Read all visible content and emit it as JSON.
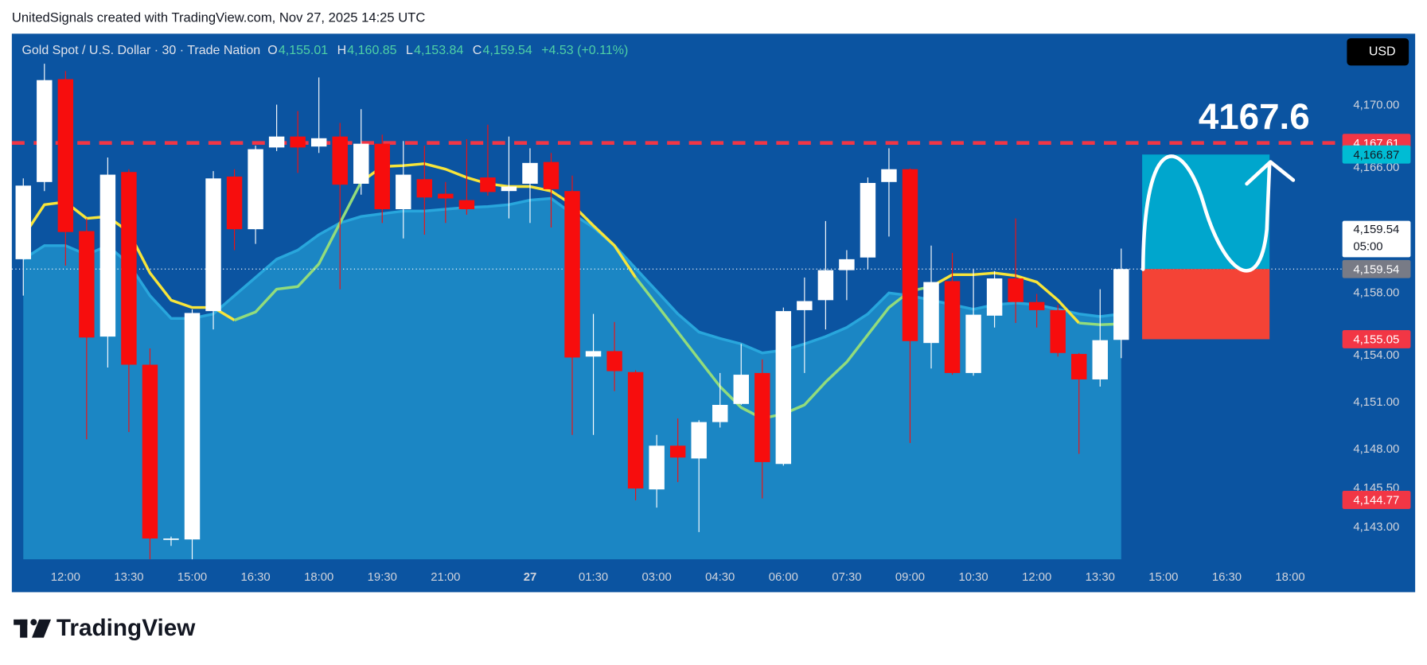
{
  "header": {
    "text": "UnitedSignals created with TradingView.com, Nov 27, 2025 14:25 UTC"
  },
  "footer": {
    "logo_text": "TradingView"
  },
  "chart_data": {
    "type": "candlestick",
    "legend": {
      "symbol": "Gold Spot / U.S. Dollar · 30 · Trade Nation",
      "o_key": "O",
      "o": "4,155.01",
      "h_key": "H",
      "h": "4,160.85",
      "l_key": "L",
      "l": "4,153.84",
      "c_key": "C",
      "c": "4,159.54",
      "change": "+4.53 (+0.11%)"
    },
    "currency": "USD",
    "categories": [
      null,
      null,
      "12:00",
      null,
      null,
      "13:30",
      null,
      null,
      "15:00",
      null,
      null,
      "16:30",
      null,
      null,
      "18:00",
      null,
      null,
      "19:30",
      null,
      null,
      "21:00",
      null,
      null,
      null,
      "27",
      null,
      null,
      "01:30",
      null,
      null,
      "03:00",
      null,
      null,
      "04:30",
      null,
      null,
      "06:00",
      null,
      null,
      "07:30",
      null,
      null,
      "09:00",
      null,
      null,
      "10:30",
      null,
      null,
      "12:00",
      null,
      null,
      "13:30",
      null,
      null,
      "15:00",
      null,
      null,
      "16:30",
      null,
      null,
      "18:00",
      null
    ],
    "open": [
      4160.17,
      4165.11,
      4171.69,
      4161.97,
      4155.22,
      4165.75,
      4153.42,
      4142.24,
      4142.24,
      4156.85,
      4165.46,
      4162.09,
      4167.32,
      4168.02,
      4167.38,
      4168.02,
      4165.0,
      4167.56,
      4163.37,
      4165.29,
      4164.36,
      4163.95,
      4165.4,
      4164.53,
      4165.0,
      4166.39,
      4164.53,
      4153.94,
      4154.29,
      4152.95,
      4145.44,
      4148.24,
      4147.42,
      4149.75,
      4150.91,
      4152.89,
      4147.07,
      4156.91,
      4157.55,
      4159.47,
      4160.28,
      4165.11,
      4165.93,
      4154.81,
      4158.77,
      4152.89,
      4156.56,
      4158.94,
      4157.43,
      4156.91,
      4154.11,
      4152.48,
      4155.01,
      null,
      null,
      null,
      null,
      null,
      null,
      null,
      null,
      null
    ],
    "high": [
      4165.34,
      4172.68,
      4172.21,
      4162.78,
      4166.68,
      4165.93,
      4154.46,
      4142.42,
      4156.96,
      4165.81,
      4165.93,
      4167.44,
      4170.06,
      4169.65,
      4171.8,
      4168.89,
      4169.77,
      4168.14,
      4167.73,
      4167.44,
      4165.11,
      4167.85,
      4168.78,
      4168.02,
      4167.27,
      4166.97,
      4165.52,
      4156.67,
      4156.15,
      4153.07,
      4148.93,
      4149.98,
      4149.87,
      4152.89,
      4154.75,
      4153.76,
      4157.08,
      4159.0,
      4162.61,
      4160.75,
      4165.4,
      4167.27,
      4165.98,
      4161.04,
      4160.57,
      4159.53,
      4159.41,
      4162.78,
      4157.95,
      4157.26,
      4154.17,
      4158.25,
      4160.85,
      null,
      null,
      null,
      null,
      null,
      null,
      null,
      null,
      null
    ],
    "low": [
      4157.84,
      4164.53,
      4159.76,
      4148.64,
      4153.24,
      4149.11,
      4140.96,
      4141.83,
      4140.96,
      4155.68,
      4160.75,
      4161.15,
      4167.09,
      4165.69,
      4166.97,
      4158.25,
      4164.3,
      4162.49,
      4161.5,
      4161.74,
      4162.49,
      4163.02,
      4164.24,
      4162.78,
      4162.49,
      4162.2,
      4148.93,
      4148.93,
      4151.73,
      4144.75,
      4144.28,
      4145.91,
      4142.71,
      4149.4,
      4150.85,
      4144.86,
      4146.96,
      4152.89,
      4155.68,
      4157.55,
      4159.53,
      4161.62,
      4148.41,
      4153.18,
      4152.78,
      4152.72,
      4155.8,
      4156.09,
      4155.8,
      4153.94,
      4147.72,
      4152.02,
      4153.84,
      null,
      null,
      null,
      null,
      null,
      null,
      null,
      null,
      null
    ],
    "close": [
      4164.88,
      4171.63,
      4161.91,
      4155.16,
      4165.58,
      4153.42,
      4142.3,
      4142.3,
      4156.73,
      4165.34,
      4162.09,
      4167.21,
      4168.02,
      4167.32,
      4167.91,
      4164.94,
      4167.56,
      4163.37,
      4165.58,
      4164.12,
      4164.06,
      4163.37,
      4164.47,
      4164.82,
      4166.33,
      4164.65,
      4153.88,
      4154.29,
      4153.01,
      4145.5,
      4148.24,
      4147.48,
      4149.75,
      4150.85,
      4152.78,
      4147.19,
      4156.85,
      4157.49,
      4159.47,
      4160.17,
      4165.05,
      4165.93,
      4154.93,
      4158.71,
      4152.89,
      4156.62,
      4158.94,
      4157.43,
      4156.91,
      4154.17,
      4152.48,
      4154.99,
      4159.54,
      null,
      null,
      null,
      null,
      null,
      null,
      null,
      null,
      null
    ],
    "up_color": "#ffffff",
    "down_color": "#f70d0d",
    "ylim": [
      4140.96,
      4174.6
    ],
    "yticks": [
      {
        "value": 4143,
        "label": "4,143.00"
      },
      {
        "value": 4145.5,
        "label": "4,145.50"
      },
      {
        "value": 4148,
        "label": "4,148.00"
      },
      {
        "value": 4151,
        "label": "4,151.00"
      },
      {
        "value": 4154,
        "label": "4,154.00"
      },
      {
        "value": 4158,
        "label": "4,158.00"
      },
      {
        "value": 4166,
        "label": "4,166.00"
      },
      {
        "value": 4170,
        "label": "4,170.00"
      }
    ],
    "ma": {
      "values": [
        4161.62,
        4163.66,
        4163.83,
        4162.78,
        4162.9,
        4161.91,
        4159.29,
        4157.55,
        4157.08,
        4157.08,
        4156.27,
        4156.79,
        4158.25,
        4158.42,
        4159.87,
        4162.49,
        4165.11,
        4166.1,
        4166.16,
        4166.28,
        4165.93,
        4165.4,
        4165.0,
        4164.82,
        4164.82,
        4164.53,
        4163.66,
        4162.32,
        4161.04,
        4159.0,
        4157.26,
        4155.51,
        4153.76,
        4152.02,
        4150.68,
        4149.98,
        4150.27,
        4150.85,
        4152.31,
        4153.59,
        4155.34,
        4157.08,
        4158.13,
        4158.42,
        4159.18,
        4159.18,
        4159.29,
        4159.12,
        4158.71,
        4157.55,
        4156.09,
        4155.98,
        4156.03,
        null,
        null,
        null,
        null,
        null,
        null,
        null,
        null,
        null
      ],
      "colors": [
        "#f7e53a",
        "#f7e53a",
        "#f7e53a",
        "#f7e53a",
        "#f7e53a",
        "#f7e53a",
        "#f7e53a",
        "#f7e53a",
        "#f7e53a",
        "#f7e53a",
        "#92dc7c",
        "#92dc7c",
        "#92dc7c",
        "#92dc7c",
        "#92dc7c",
        "#92dc7c",
        "#f7e53a",
        "#f7e53a",
        "#f7e53a",
        "#f7e53a",
        "#f7e53a",
        "#f7e53a",
        "#f7e53a",
        "#f7e53a",
        "#f7e53a",
        "#f7e53a",
        "#f7e53a",
        "#f7e53a",
        "#f7e53a",
        "#92dc7c",
        "#92dc7c",
        "#92dc7c",
        "#92dc7c",
        "#92dc7c",
        "#92dc7c",
        "#92dc7c",
        "#92dc7c",
        "#92dc7c",
        "#92dc7c",
        "#92dc7c",
        "#92dc7c",
        "#92dc7c",
        "#92dc7c",
        "#f7e53a",
        "#f7e53a",
        "#f7e53a",
        "#f7e53a",
        "#f7e53a",
        "#f7e53a",
        "#f7e53a",
        "#92dc7c",
        "#92dc7c",
        "#92dc7c",
        null,
        null,
        null,
        null,
        null,
        null,
        null,
        null,
        null
      ]
    },
    "band": {
      "values": [
        4160.17,
        4161.04,
        4161.04,
        4160.46,
        4161.04,
        4159.87,
        4157.84,
        4156.38,
        4156.38,
        4156.67,
        4157.84,
        4159.0,
        4160.17,
        4160.75,
        4161.74,
        4162.49,
        4162.9,
        4163.08,
        4163.25,
        4163.25,
        4163.37,
        4163.48,
        4163.54,
        4163.66,
        4163.95,
        4164.06,
        4163.08,
        4162.2,
        4161.04,
        4159.58,
        4158.13,
        4156.67,
        4155.51,
        4155.1,
        4154.75,
        4154.17,
        4154.35,
        4154.75,
        4155.22,
        4155.8,
        4156.67,
        4158.01,
        4157.84,
        4157.55,
        4157.26,
        4156.97,
        4157.26,
        4157.37,
        4157.26,
        4156.97,
        4156.67,
        4156.5,
        4156.67,
        null,
        null,
        null,
        null,
        null,
        null,
        null,
        null,
        null
      ],
      "color": "#28a6dc",
      "fill": "#1b86c4"
    },
    "hlines": [
      {
        "value": 4167.61,
        "label": "4,167.61",
        "color": "#f23645"
      }
    ],
    "last_price": {
      "value": 4159.54,
      "label": "4,159.54",
      "countdown": "05:00"
    },
    "position": {
      "target": {
        "value": 4166.87,
        "label": "4,166.87"
      },
      "entry": {
        "value": 4159.54,
        "label": "4,159.54"
      },
      "stop": {
        "value": 4155.05,
        "label": "4,155.05"
      },
      "profit_color": "#00a6cd",
      "loss_color": "#f44336"
    },
    "price_labels": [
      {
        "value": 4144.77,
        "label": "4,144.77",
        "color": "#f23645"
      }
    ],
    "annotation": {
      "text": "4167.6"
    }
  }
}
